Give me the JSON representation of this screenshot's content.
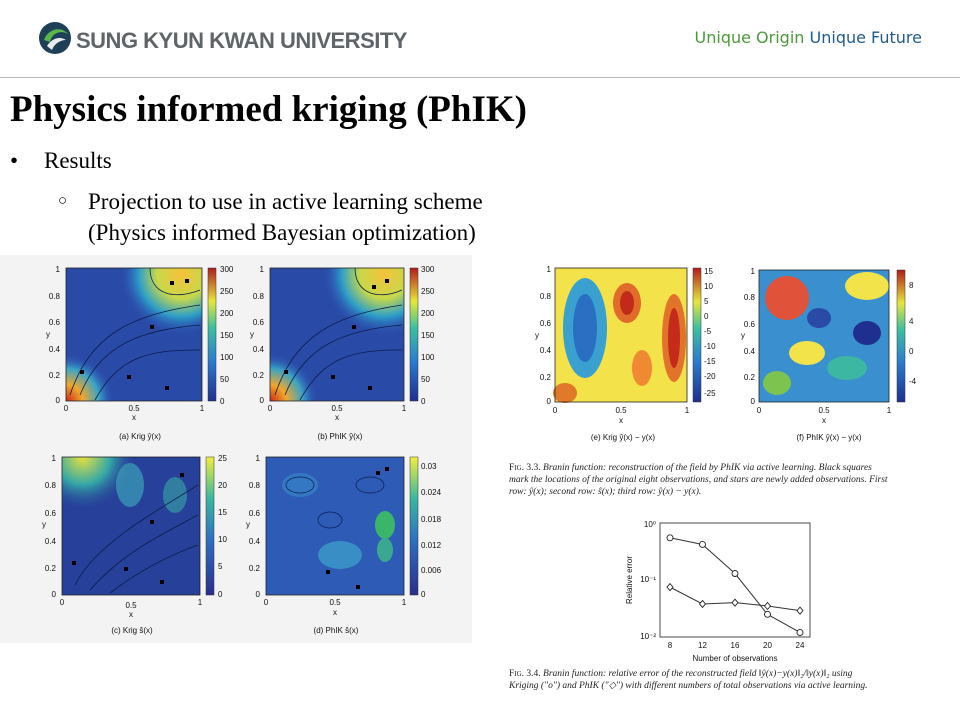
{
  "header": {
    "university": "SUNG KYUN KWAN UNIVERSITY",
    "slogan_a": "Unique Origin",
    "slogan_b": "Unique Future",
    "colors": {
      "green": "#4a9a3a",
      "blue": "#1f5b8f"
    }
  },
  "title": "Physics informed kriging (PhIK)",
  "bullets": {
    "level1": "Results",
    "level2_line1": "Projection to use in active learning scheme",
    "level2_line2": "(Physics informed Bayesian optimization)"
  },
  "panels": {
    "a": {
      "caption": "(a) Krig ŷ(x)",
      "colorbar": [
        "300",
        "250",
        "200",
        "150",
        "100",
        "50",
        "0"
      ]
    },
    "b": {
      "caption": "(b) PhIK ŷ(x)",
      "colorbar": [
        "300",
        "250",
        "200",
        "150",
        "100",
        "50",
        "0"
      ]
    },
    "c": {
      "caption": "(c) Krig ŝ(x)",
      "colorbar": [
        "25",
        "20",
        "15",
        "10",
        "5",
        "0"
      ]
    },
    "d": {
      "caption": "(d) PhIK ŝ(x)",
      "colorbar": [
        "0.03",
        "0.024",
        "0.018",
        "0.012",
        "0.006",
        "0"
      ]
    },
    "e": {
      "caption": "(e) Krig ŷ(x) − y(x)",
      "colorbar": [
        "15",
        "10",
        "5",
        "0",
        "-5",
        "-10",
        "-15",
        "-20",
        "-25"
      ]
    },
    "f": {
      "caption": "(f) PhIK ŷ(x) − y(x)",
      "colorbar": [
        "8",
        "4",
        "0",
        "-4"
      ]
    }
  },
  "axes": {
    "x_label": "x",
    "y_label": "y",
    "x_ticks": [
      "0",
      "0.5",
      "1"
    ],
    "y_ticks": [
      "0",
      "0.2",
      "0.4",
      "0.6",
      "0.8",
      "1"
    ]
  },
  "fig33": {
    "label": "Fig. 3.3.",
    "line1": "Branin function: reconstruction of the field by PhIK via active learning. Black squares",
    "line2": "mark the locations of the original eight observations, and stars are newly added observations. First",
    "line3": "row: ŷ(x); second row: ŝ(x); third row: ŷ(x) − y(x)."
  },
  "fig34": {
    "label": "Fig. 3.4.",
    "line1": "Branin function: relative error of the reconstructed field ‖ŷ(x)−y(x)‖₂/‖y(x)‖₂ using",
    "line2": "Kriging (\"o\") and PhIK (\"◇\") with different numbers of total observations via active learning."
  },
  "chart_data": {
    "type": "line",
    "xlabel": "Number of observations",
    "ylabel": "Relative error",
    "x": [
      8,
      12,
      16,
      20,
      24
    ],
    "x_ticks": [
      "8",
      "12",
      "16",
      "20",
      "24"
    ],
    "y_ticks": [
      "10⁰",
      "10⁻¹",
      "10⁻²"
    ],
    "y_scale": "log",
    "ylim": [
      0.01,
      1
    ],
    "series": [
      {
        "marker": "circle",
        "values": [
          0.55,
          0.42,
          0.13,
          0.025,
          0.012
        ]
      },
      {
        "marker": "diamond",
        "values": [
          0.075,
          0.038,
          0.04,
          0.035,
          0.029
        ]
      }
    ]
  }
}
